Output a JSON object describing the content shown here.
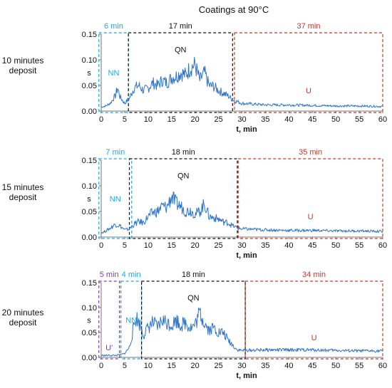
{
  "figure": {
    "title": "Coatings at 90°C"
  },
  "colors": {
    "series": "#2E75C9",
    "NN": "#1FA8E0",
    "QN": "#111111",
    "U": "#C0392B",
    "U_prime": "#7B3FB5",
    "axis": "#777777"
  },
  "chart_data": [
    {
      "type": "line",
      "row_label": [
        "10 minutes",
        "deposit"
      ],
      "xlabel": "t, min",
      "ylabel": "s",
      "xlim": [
        0,
        60
      ],
      "ylim": [
        0,
        0.15
      ],
      "xticks": [
        0,
        5,
        10,
        15,
        20,
        25,
        30,
        35,
        40,
        45,
        50,
        55,
        60
      ],
      "yticks": [
        "0.00",
        "0.05",
        "0.10",
        "0.15"
      ],
      "segments": [
        {
          "name": "NN",
          "duration": "6 min",
          "x_start": -0.5,
          "x_end": 5.8,
          "color": "NN"
        },
        {
          "name": "QN",
          "duration": "17 min",
          "x_start": 5.8,
          "x_end": 28.0,
          "color": "QN"
        },
        {
          "name": "U",
          "duration": "37 min",
          "x_start": 28.4,
          "x_end": 60,
          "color": "U"
        }
      ],
      "series_points": [
        [
          0,
          0.008
        ],
        [
          1,
          0.01
        ],
        [
          2,
          0.016
        ],
        [
          3,
          0.03
        ],
        [
          3.5,
          0.045
        ],
        [
          4,
          0.028
        ],
        [
          5,
          0.015
        ],
        [
          6,
          0.025
        ],
        [
          7,
          0.045
        ],
        [
          8,
          0.05
        ],
        [
          9,
          0.04
        ],
        [
          10,
          0.045
        ],
        [
          11,
          0.055
        ],
        [
          12,
          0.05
        ],
        [
          13,
          0.06
        ],
        [
          14,
          0.055
        ],
        [
          15,
          0.065
        ],
        [
          16,
          0.068
        ],
        [
          17,
          0.075
        ],
        [
          18,
          0.07
        ],
        [
          19,
          0.085
        ],
        [
          20,
          0.09
        ],
        [
          21,
          0.06
        ],
        [
          22,
          0.075
        ],
        [
          23,
          0.05
        ],
        [
          24,
          0.048
        ],
        [
          25,
          0.04
        ],
        [
          26,
          0.035
        ],
        [
          27,
          0.03
        ],
        [
          28,
          0.022
        ],
        [
          30,
          0.015
        ],
        [
          35,
          0.012
        ],
        [
          40,
          0.012
        ],
        [
          45,
          0.011
        ],
        [
          50,
          0.01
        ],
        [
          55,
          0.01
        ],
        [
          60,
          0.009
        ]
      ]
    },
    {
      "type": "line",
      "row_label": [
        "15 minutes",
        "deposit"
      ],
      "xlabel": "t, min",
      "ylabel": "s",
      "xlim": [
        0,
        60
      ],
      "ylim": [
        0,
        0.15
      ],
      "xticks": [
        0,
        5,
        10,
        15,
        20,
        25,
        30,
        35,
        40,
        45,
        50,
        55,
        60
      ],
      "yticks": [
        "0.00",
        "0.05",
        "0.10",
        "0.15"
      ],
      "segments": [
        {
          "name": "NN",
          "duration": "7 min",
          "x_start": -0.5,
          "x_end": 6.5,
          "color": "NN"
        },
        {
          "name": "QN",
          "duration": "18 min",
          "x_start": 6.0,
          "x_end": 29.0,
          "color": "QN"
        },
        {
          "name": "U",
          "duration": "35 min",
          "x_start": 29.2,
          "x_end": 60,
          "color": "U"
        }
      ],
      "series_points": [
        [
          0,
          0.008
        ],
        [
          1,
          0.012
        ],
        [
          2,
          0.018
        ],
        [
          3,
          0.025
        ],
        [
          4,
          0.022
        ],
        [
          5,
          0.014
        ],
        [
          6,
          0.016
        ],
        [
          7,
          0.025
        ],
        [
          8,
          0.03
        ],
        [
          9,
          0.028
        ],
        [
          10,
          0.04
        ],
        [
          11,
          0.048
        ],
        [
          12,
          0.05
        ],
        [
          13,
          0.06
        ],
        [
          14,
          0.058
        ],
        [
          15,
          0.08
        ],
        [
          16,
          0.065
        ],
        [
          17,
          0.06
        ],
        [
          18,
          0.05
        ],
        [
          19,
          0.052
        ],
        [
          20,
          0.045
        ],
        [
          21,
          0.05
        ],
        [
          22,
          0.065
        ],
        [
          23,
          0.04
        ],
        [
          24,
          0.038
        ],
        [
          25,
          0.035
        ],
        [
          26,
          0.03
        ],
        [
          27,
          0.028
        ],
        [
          28,
          0.022
        ],
        [
          29,
          0.018
        ],
        [
          30,
          0.016
        ],
        [
          35,
          0.014
        ],
        [
          40,
          0.013
        ],
        [
          45,
          0.013
        ],
        [
          50,
          0.012
        ],
        [
          55,
          0.012
        ],
        [
          60,
          0.011
        ]
      ]
    },
    {
      "type": "line",
      "row_label": [
        "20 minutes",
        "deposit"
      ],
      "xlabel": "t, min",
      "ylabel": "s",
      "xlim": [
        0,
        60
      ],
      "ylim": [
        0,
        0.15
      ],
      "xticks": [
        0,
        5,
        10,
        15,
        20,
        25,
        30,
        35,
        40,
        45,
        50,
        55,
        60
      ],
      "yticks": [
        "0.00",
        "0.05",
        "0.10",
        "0.15"
      ],
      "segments": [
        {
          "name": "U'",
          "duration": "5 min",
          "x_start": -0.5,
          "x_end": 3.9,
          "color": "U_prime"
        },
        {
          "name": "NN",
          "duration": "4 min",
          "x_start": 4.2,
          "x_end": 8.6,
          "color": "NN"
        },
        {
          "name": "QN",
          "duration": "18 min",
          "x_start": 8.6,
          "x_end": 30.7,
          "color": "QN"
        },
        {
          "name": "U",
          "duration": "34 min",
          "x_start": 30.7,
          "x_end": 60,
          "color": "U"
        }
      ],
      "series_points": [
        [
          0,
          0.004
        ],
        [
          1,
          0.004
        ],
        [
          2,
          0.004
        ],
        [
          3,
          0.004
        ],
        [
          4,
          0.005
        ],
        [
          5,
          0.008
        ],
        [
          6,
          0.02
        ],
        [
          6.5,
          0.04
        ],
        [
          7,
          0.065
        ],
        [
          7.5,
          0.08
        ],
        [
          8,
          0.07
        ],
        [
          8.5,
          0.06
        ],
        [
          9,
          0.045
        ],
        [
          10,
          0.06
        ],
        [
          11,
          0.07
        ],
        [
          12,
          0.06
        ],
        [
          13,
          0.075
        ],
        [
          14,
          0.07
        ],
        [
          15,
          0.065
        ],
        [
          16,
          0.075
        ],
        [
          17,
          0.065
        ],
        [
          18,
          0.07
        ],
        [
          19,
          0.06
        ],
        [
          20,
          0.065
        ],
        [
          21,
          0.09
        ],
        [
          22,
          0.07
        ],
        [
          23,
          0.055
        ],
        [
          24,
          0.06
        ],
        [
          25,
          0.05
        ],
        [
          26,
          0.05
        ],
        [
          27,
          0.035
        ],
        [
          28,
          0.025
        ],
        [
          29,
          0.015
        ],
        [
          30,
          0.014
        ],
        [
          35,
          0.015
        ],
        [
          40,
          0.015
        ],
        [
          45,
          0.015
        ],
        [
          50,
          0.014
        ],
        [
          55,
          0.013
        ],
        [
          60,
          0.013
        ]
      ]
    }
  ]
}
